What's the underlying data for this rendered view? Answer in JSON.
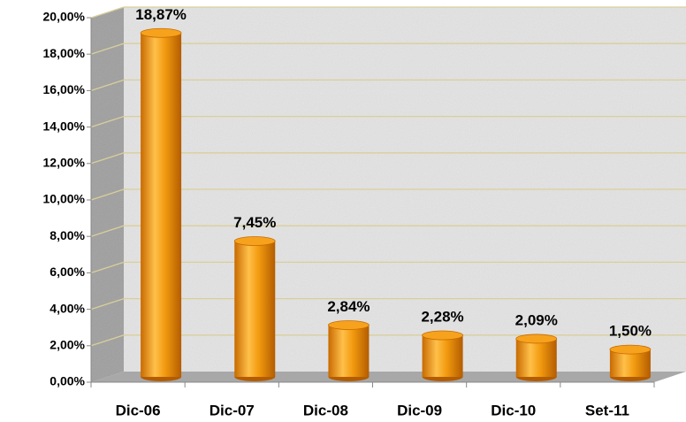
{
  "chart_data": {
    "type": "bar",
    "categories": [
      "Dic-06",
      "Dic-07",
      "Dic-08",
      "Dic-09",
      "Dic-10",
      "Set-11"
    ],
    "values": [
      18.87,
      7.45,
      2.84,
      2.28,
      2.09,
      1.5
    ],
    "value_labels": [
      "18,87%",
      "7,45%",
      "2,84%",
      "2,28%",
      "2,09%",
      "1,50%"
    ],
    "color": "#f29a0f",
    "ylim": [
      0,
      20
    ],
    "yticks": [
      {
        "value": 0,
        "label": "0,00%"
      },
      {
        "value": 2,
        "label": "2,00%"
      },
      {
        "value": 4,
        "label": "4,00%"
      },
      {
        "value": 6,
        "label": "6,00%"
      },
      {
        "value": 8,
        "label": "8,00%"
      },
      {
        "value": 10,
        "label": "10,00%"
      },
      {
        "value": 12,
        "label": "12,00%"
      },
      {
        "value": 14,
        "label": "14,00%"
      },
      {
        "value": 16,
        "label": "16,00%"
      },
      {
        "value": 18,
        "label": "18,00%"
      },
      {
        "value": 20,
        "label": "20,00%"
      }
    ],
    "grid": true
  }
}
